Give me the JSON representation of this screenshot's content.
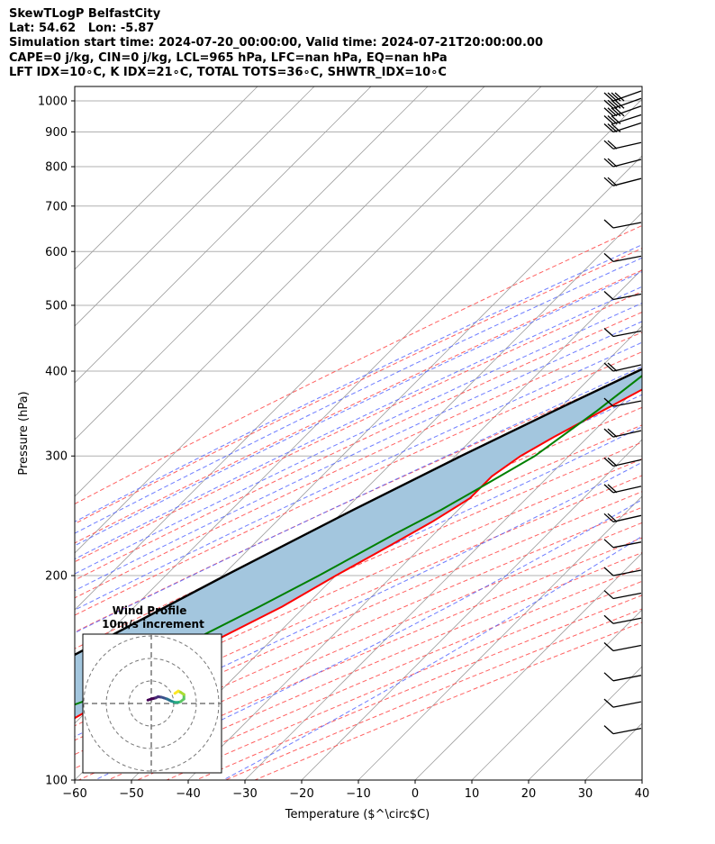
{
  "header": {
    "title": "SkewTLogP BelfastCity",
    "latlon": "Lat: 54.62   Lon: -5.87",
    "times": "Simulation start time: 2024-07-20_00:00:00, Valid time: 2024-07-21T20:00:00.00",
    "params": "CAPE=0 j/kg, CIN=0 j/kg, LCL=965 hPa, LFC=nan hPa, EQ=nan hPa",
    "indices": "LFT IDX=10∘C, K IDX=21∘C, TOTAL TOTS=36∘C, SHWTR_IDX=10∘C"
  },
  "colors": {
    "temperature": "#ff0000",
    "dewpoint": "#008000",
    "parcel": "#000000",
    "shade": "#a3c6de",
    "dry_adiabats": "#ff5050",
    "moist_adiabats": "#4a5cff",
    "mixing_ratio": "#9a4fc0",
    "isotherms": "#a0a0a0"
  },
  "chart_data": {
    "type": "line",
    "xlabel": "Temperature ($^\\circ$C)",
    "ylabel": "Pressure (hPa)",
    "xlim": [
      -60,
      40
    ],
    "ylim": [
      1050,
      100
    ],
    "y_scale": "log",
    "x_ticks": [
      "−60",
      "−50",
      "−40",
      "−30",
      "−20",
      "−10",
      "0",
      "10",
      "20",
      "30",
      "40"
    ],
    "y_ticks": [
      "100",
      "200",
      "300",
      "400",
      "500",
      "600",
      "700",
      "800",
      "900",
      "1000"
    ],
    "grid": true,
    "series": [
      {
        "key": "temperature",
        "points": [
          [
            1000,
            12
          ],
          [
            960,
            9.5
          ],
          [
            900,
            6.5
          ],
          [
            850,
            4
          ],
          [
            800,
            1.5
          ],
          [
            750,
            -1
          ],
          [
            700,
            -4
          ],
          [
            650,
            -5.5
          ],
          [
            600,
            -8
          ],
          [
            550,
            -12
          ],
          [
            500,
            -16.5
          ],
          [
            450,
            -21
          ],
          [
            400,
            -26
          ],
          [
            350,
            -32
          ],
          [
            320,
            -36
          ],
          [
            300,
            -38.5
          ],
          [
            280,
            -40
          ],
          [
            260,
            -40
          ],
          [
            240,
            -42.5
          ],
          [
            220,
            -46
          ],
          [
            200,
            -50
          ],
          [
            180,
            -54
          ],
          [
            160,
            -60
          ],
          [
            140,
            -66
          ],
          [
            120,
            -72
          ],
          [
            100,
            -80
          ]
        ]
      },
      {
        "key": "dewpoint",
        "points": [
          [
            1000,
            10
          ],
          [
            985,
            10
          ],
          [
            960,
            5.5
          ],
          [
            930,
            2.5
          ],
          [
            900,
            0
          ],
          [
            850,
            -3
          ],
          [
            800,
            -3.5
          ],
          [
            750,
            -4.5
          ],
          [
            700,
            -5
          ],
          [
            650,
            -6.5
          ],
          [
            600,
            -16
          ],
          [
            560,
            -24
          ],
          [
            530,
            -27
          ],
          [
            500,
            -26
          ],
          [
            450,
            -28.5
          ],
          [
            400,
            -31
          ],
          [
            350,
            -33
          ],
          [
            300,
            -36
          ],
          [
            270,
            -40
          ],
          [
            250,
            -43
          ],
          [
            230,
            -47
          ],
          [
            200,
            -53
          ],
          [
            180,
            -58
          ],
          [
            160,
            -64
          ],
          [
            140,
            -66
          ],
          [
            120,
            -80
          ],
          [
            100,
            -90
          ]
        ]
      },
      {
        "key": "parcel",
        "points": [
          [
            1000,
            12
          ],
          [
            965,
            11
          ],
          [
            900,
            7.8
          ],
          [
            850,
            5.5
          ],
          [
            800,
            3
          ],
          [
            750,
            0.2
          ],
          [
            700,
            -2.8
          ],
          [
            650,
            -6.3
          ],
          [
            600,
            -10.2
          ],
          [
            550,
            -14.8
          ],
          [
            500,
            -20
          ],
          [
            450,
            -26
          ],
          [
            400,
            -32.8
          ],
          [
            350,
            -40.5
          ],
          [
            300,
            -49
          ],
          [
            250,
            -58.5
          ],
          [
            200,
            -69.5
          ],
          [
            150,
            -83
          ],
          [
            100,
            -101
          ]
        ]
      }
    ],
    "wind_barbs": [
      {
        "p": 1000,
        "kt": 35
      },
      {
        "p": 975,
        "kt": 35
      },
      {
        "p": 950,
        "kt": 35
      },
      {
        "p": 925,
        "kt": 30
      },
      {
        "p": 900,
        "kt": 30
      },
      {
        "p": 850,
        "kt": 15
      },
      {
        "p": 800,
        "kt": 20
      },
      {
        "p": 750,
        "kt": 20
      },
      {
        "p": 650,
        "kt": 10
      },
      {
        "p": 580,
        "kt": 10
      },
      {
        "p": 510,
        "kt": 10
      },
      {
        "p": 450,
        "kt": 10
      },
      {
        "p": 400,
        "kt": 15
      },
      {
        "p": 355,
        "kt": 10
      },
      {
        "p": 320,
        "kt": 15
      },
      {
        "p": 290,
        "kt": 15
      },
      {
        "p": 265,
        "kt": 15
      },
      {
        "p": 240,
        "kt": 15
      },
      {
        "p": 220,
        "kt": 10
      },
      {
        "p": 200,
        "kt": 10
      },
      {
        "p": 185,
        "kt": 10
      },
      {
        "p": 170,
        "kt": 10
      },
      {
        "p": 155,
        "kt": 10
      },
      {
        "p": 140,
        "kt": 10
      },
      {
        "p": 128,
        "kt": 10
      },
      {
        "p": 117,
        "kt": 10
      }
    ],
    "inset": {
      "title": "Wind Profile",
      "subtitle": "10m/s increment",
      "hodograph": [
        [
          -1.5,
          1.5
        ],
        [
          0,
          2
        ],
        [
          2,
          2.5
        ],
        [
          3,
          3
        ],
        [
          4.5,
          2.8
        ],
        [
          5.5,
          2.5
        ],
        [
          7,
          2
        ],
        [
          8,
          1.5
        ],
        [
          9,
          1
        ],
        [
          10.5,
          0.5
        ],
        [
          12,
          0.5
        ],
        [
          13,
          0.8
        ],
        [
          14.5,
          2
        ],
        [
          14.5,
          4
        ],
        [
          13,
          5
        ],
        [
          12,
          5.5
        ],
        [
          10.5,
          4.5
        ]
      ]
    }
  }
}
